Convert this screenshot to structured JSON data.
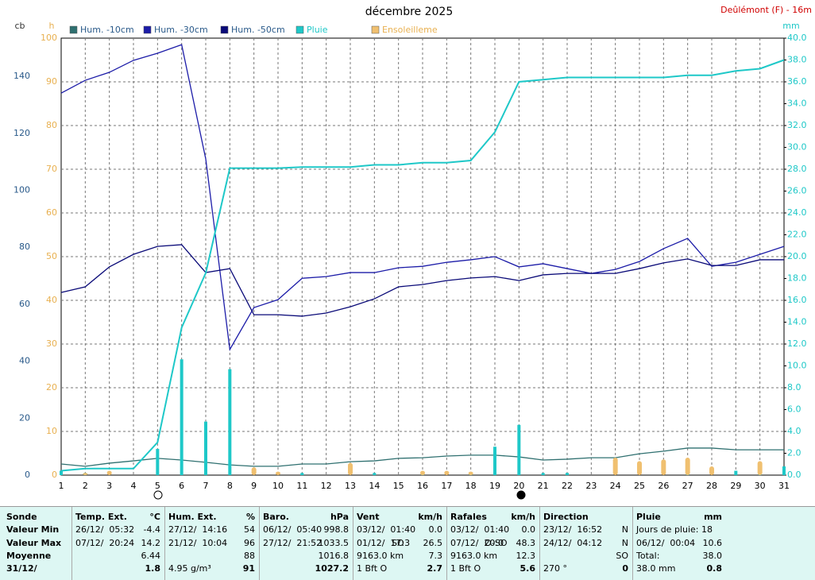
{
  "chart_data": {
    "type": "line",
    "title": "décembre 2025",
    "station": "Deûlémont (F) - 16m",
    "y_label": "cb",
    "y3_label": "h",
    "y2_label": "mm",
    "categories": [
      "1",
      "2",
      "3",
      "4",
      "5",
      "6",
      "7",
      "8",
      "9",
      "10",
      "11",
      "12",
      "13",
      "14",
      "15",
      "16",
      "17",
      "18",
      "19",
      "20",
      "21",
      "22",
      "23",
      "24",
      "25",
      "26",
      "27",
      "28",
      "29",
      "30",
      "31"
    ],
    "ylim": [
      0,
      153.4
    ],
    "yticks": [
      0,
      20,
      40,
      60,
      80,
      100,
      120,
      140
    ],
    "y3lim": [
      0,
      100
    ],
    "y3ticks": [
      0,
      10,
      20,
      30,
      40,
      50,
      60,
      70,
      80,
      90,
      100
    ],
    "y2lim": [
      0,
      40
    ],
    "y2ticks": [
      {
        "value": 0,
        "label": "0.0"
      },
      {
        "value": 2,
        "label": "2.0"
      },
      {
        "value": 4,
        "label": "4.0"
      },
      {
        "value": 6,
        "label": "6.0"
      },
      {
        "value": 8,
        "label": "8.0"
      },
      {
        "value": 10,
        "label": "10.0"
      },
      {
        "value": 12,
        "label": "12.0"
      },
      {
        "value": 14,
        "label": "14.0"
      },
      {
        "value": 16,
        "label": "16.0"
      },
      {
        "value": 18,
        "label": "18.0"
      },
      {
        "value": 20,
        "label": "20.0"
      },
      {
        "value": 22,
        "label": "22.0"
      },
      {
        "value": 24,
        "label": "24.0"
      },
      {
        "value": 26,
        "label": "26.0"
      },
      {
        "value": 28,
        "label": "28.0"
      },
      {
        "value": 30,
        "label": "30.0"
      },
      {
        "value": 32,
        "label": "32.0"
      },
      {
        "value": 34,
        "label": "34.0"
      },
      {
        "value": 36,
        "label": "36.0"
      },
      {
        "value": 38,
        "label": "38.0"
      },
      {
        "value": 40,
        "label": "40.0"
      }
    ],
    "grid": true,
    "series": [
      {
        "name": "Hum. -10cm",
        "color": "#2f7070",
        "axis": "y",
        "values": [
          3.9,
          3.1,
          4.2,
          5.0,
          5.9,
          5.3,
          4.5,
          3.6,
          3.1,
          3.1,
          3.9,
          3.9,
          4.7,
          5.0,
          5.9,
          6.1,
          6.7,
          7.0,
          7.0,
          6.4,
          5.3,
          5.6,
          6.1,
          6.1,
          7.5,
          8.4,
          9.5,
          9.5,
          8.9,
          8.9,
          8.9
        ]
      },
      {
        "name": "Hum. -30cm",
        "color": "#1c1ca8",
        "axis": "y",
        "values": [
          134.1,
          138.6,
          141.4,
          145.6,
          148.1,
          151.1,
          111.0,
          44.1,
          58.8,
          61.6,
          69.1,
          69.7,
          71.1,
          71.1,
          72.8,
          73.3,
          74.7,
          75.6,
          76.7,
          73.1,
          74.2,
          72.5,
          70.8,
          72.2,
          75.0,
          79.5,
          83.1,
          73.3,
          74.7,
          77.5,
          80.3
        ]
      },
      {
        "name": "Hum. -50cm",
        "color": "#0a0a78",
        "axis": "y",
        "values": [
          64.1,
          66.1,
          73.1,
          77.5,
          80.3,
          80.9,
          71.1,
          72.5,
          56.3,
          56.3,
          55.8,
          56.9,
          59.1,
          61.9,
          66.1,
          66.9,
          68.3,
          69.2,
          69.7,
          68.3,
          70.3,
          70.8,
          70.8,
          70.8,
          72.5,
          74.5,
          75.9,
          73.6,
          73.6,
          75.6,
          75.6
        ]
      },
      {
        "name": "Pluie",
        "color": "#1ec8c8",
        "axis": "y2",
        "values": [
          0.4,
          0.6,
          0.6,
          0.6,
          3.0,
          13.5,
          18.5,
          28.1,
          28.1,
          28.1,
          28.2,
          28.2,
          28.2,
          28.4,
          28.4,
          28.6,
          28.6,
          28.8,
          31.4,
          36.0,
          36.2,
          36.4,
          36.4,
          36.4,
          36.4,
          36.4,
          36.6,
          36.6,
          37.0,
          37.2,
          38.0
        ],
        "daily": [
          0.4,
          0.2,
          0,
          0,
          2.4,
          10.6,
          4.9,
          9.7,
          0,
          0,
          0.2,
          0,
          0,
          0.2,
          0,
          0.3,
          0,
          0.2,
          2.6,
          4.6,
          0.2,
          0.2,
          0,
          0,
          0,
          0,
          0.2,
          0,
          0.4,
          0.2,
          0.8
        ]
      },
      {
        "name": "Ensoleilleme",
        "color": "#f0c070",
        "axis": "y3",
        "style": "bar",
        "values": [
          0,
          0.5,
          1.0,
          0,
          0,
          0,
          0,
          0,
          1.8,
          0.8,
          0,
          0,
          2.8,
          0,
          0,
          1.0,
          1.0,
          0.8,
          0,
          0,
          0,
          0,
          0,
          4.0,
          3.2,
          3.6,
          4.0,
          2.0,
          0,
          3.2,
          0
        ]
      }
    ]
  },
  "table": {
    "columns": [
      {
        "title": "Sonde",
        "rows": [
          {
            "value": "Valeur Min"
          },
          {
            "value": "Valeur Max"
          },
          {
            "value": "Moyenne"
          },
          {
            "value": "31/12/"
          }
        ]
      },
      {
        "title": "Temp. Ext.",
        "unit": "°C",
        "rows": [
          {
            "date": "26/12/  05:32",
            "value": "-4.4"
          },
          {
            "date": "07/12/  20:24",
            "value": "14.2"
          },
          {
            "value": "6.44"
          },
          {
            "value": "1.8"
          }
        ]
      },
      {
        "title": "Hum. Ext.",
        "unit": "%",
        "rows": [
          {
            "date": "27/12/  14:16",
            "value": "54"
          },
          {
            "date": "21/12/  10:04",
            "value": "96"
          },
          {
            "value": "88"
          },
          {
            "date": "4.95 g/m³",
            "value": "91"
          }
        ]
      },
      {
        "title": "Baro.",
        "unit": "hPa",
        "rows": [
          {
            "date": "06/12/  05:40",
            "value": "998.8"
          },
          {
            "date": "27/12/  21:52",
            "value": "1033.5"
          },
          {
            "value": "1016.8"
          },
          {
            "value": "1027.2"
          }
        ]
      },
      {
        "title": "Vent",
        "unit": "km/h",
        "rows": [
          {
            "date": "03/12/  01:40",
            "value": "0.0"
          },
          {
            "date": "01/12/  17:3",
            "extra": "SO",
            "value": "26.5"
          },
          {
            "date": "9163.0 km",
            "value": "7.3"
          },
          {
            "date": "1 Bft O",
            "value": "2.7"
          }
        ]
      },
      {
        "title": "Rafales",
        "unit": "km/h",
        "rows": [
          {
            "date": "03/12/  01:40",
            "value": "0.0"
          },
          {
            "date": "07/12/  20:0",
            "extra": "O-SO",
            "value": "48.3"
          },
          {
            "date": "9163.0 km",
            "value": "12.3"
          },
          {
            "date": "1 Bft O",
            "value": "5.6"
          }
        ]
      },
      {
        "title": "Direction",
        "rows": [
          {
            "date": "23/12/  16:52",
            "value": "N"
          },
          {
            "date": "24/12/  04:12",
            "value": "N"
          },
          {
            "value": "SO"
          },
          {
            "date": "270 °",
            "value": "0"
          }
        ]
      },
      {
        "title": "Pluie",
        "unit": "mm",
        "rows": [
          {
            "date": "Jours de pluie: 18"
          },
          {
            "date": "06/12/  00:04",
            "value": "10.6"
          },
          {
            "date": "Total:",
            "value": "38.0"
          },
          {
            "date": "38.0 mm",
            "value": "0.8"
          }
        ]
      }
    ]
  }
}
